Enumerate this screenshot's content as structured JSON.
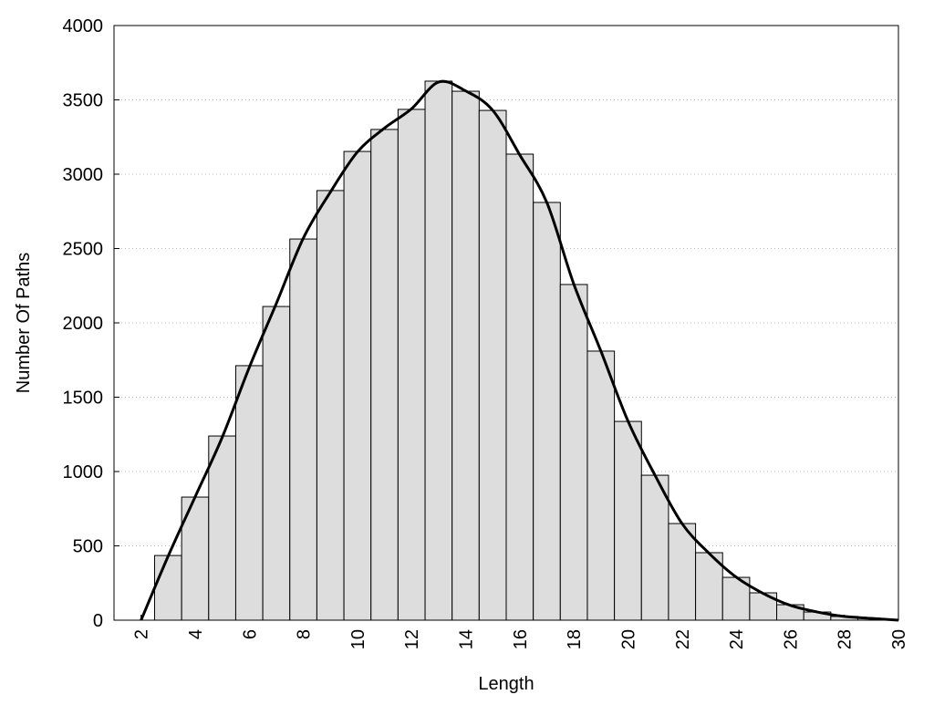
{
  "chart_data": {
    "type": "histogram",
    "xlabel": "Length",
    "ylabel": "Number Of Paths",
    "bins": [
      2.5,
      3.5,
      4.5,
      5.5,
      6.5,
      7.5,
      8.5,
      9.5,
      10.5,
      11.5,
      12.5,
      13.5,
      14.5,
      15.5,
      16.5,
      17.5,
      18.5,
      19.5,
      20.5,
      21.5,
      22.5,
      23.5,
      24.5,
      25.5,
      26.5,
      27.5,
      28.5,
      29.5
    ],
    "values": [
      435,
      828,
      1239,
      1712,
      2110,
      2564,
      2890,
      3153,
      3301,
      3436,
      3626,
      3558,
      3429,
      3135,
      2810,
      2258,
      1810,
      1337,
      975,
      650,
      454,
      288,
      184,
      104,
      55,
      25,
      12
    ],
    "color": "#dddddd",
    "line": {
      "color": "#000000",
      "x": [
        2,
        3,
        4,
        5,
        6,
        7,
        8,
        9,
        10,
        11,
        12,
        13,
        14,
        15,
        16,
        17,
        18,
        19,
        20,
        21,
        22,
        23,
        24,
        25,
        26,
        27,
        28,
        29,
        30
      ],
      "values": [
        0,
        430,
        830,
        1230,
        1700,
        2130,
        2570,
        2880,
        3150,
        3310,
        3440,
        3620,
        3560,
        3430,
        3130,
        2810,
        2260,
        1810,
        1340,
        975,
        650,
        450,
        290,
        180,
        100,
        55,
        25,
        12,
        0
      ]
    },
    "xlim": [
      1,
      30
    ],
    "xticks": [
      2,
      4,
      6,
      8,
      10,
      12,
      14,
      16,
      18,
      20,
      22,
      24,
      26,
      28,
      30
    ],
    "ylim": [
      0,
      4000
    ],
    "yticks": [
      0,
      500,
      1000,
      1500,
      2000,
      2500,
      3000,
      3500,
      4000
    ],
    "grid": true
  }
}
